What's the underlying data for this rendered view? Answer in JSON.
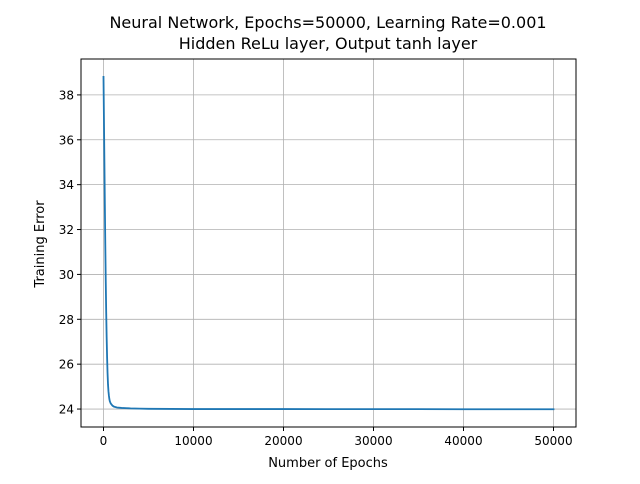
{
  "chart_data": {
    "type": "line",
    "title": "Neural Network, Epochs=50000, Learning Rate=0.001",
    "subtitle": "Hidden ReLu layer, Output tanh layer",
    "xlabel": "Number of Epochs",
    "ylabel": "Training Error",
    "xlim": [
      -2500,
      52500
    ],
    "ylim": [
      23.2,
      39.6
    ],
    "xticks": [
      0,
      10000,
      20000,
      30000,
      40000,
      50000
    ],
    "xtick_labels": [
      "0",
      "10000",
      "20000",
      "30000",
      "40000",
      "50000"
    ],
    "yticks": [
      24,
      26,
      28,
      30,
      32,
      34,
      36,
      38
    ],
    "ytick_labels": [
      "24",
      "26",
      "28",
      "30",
      "32",
      "34",
      "36",
      "38"
    ],
    "grid": true,
    "series_color": "#1f77b4",
    "series": [
      {
        "x": [
          0,
          50,
          100,
          150,
          200,
          250,
          300,
          350,
          400,
          450,
          500,
          550,
          600,
          650,
          700,
          750,
          800,
          900,
          1000,
          1200,
          1500,
          2000,
          3000,
          4000,
          5000,
          7500,
          10000,
          15000,
          20000,
          25000,
          30000,
          35000,
          40000,
          45000,
          50000
        ],
        "y": [
          38.8,
          36.9,
          35.0,
          33.1,
          31.3,
          29.7,
          28.3,
          27.2,
          26.3,
          25.6,
          25.1,
          24.8,
          24.6,
          24.45,
          24.35,
          24.3,
          24.25,
          24.2,
          24.15,
          24.1,
          24.07,
          24.05,
          24.03,
          24.02,
          24.01,
          24.005,
          24.0,
          24.0,
          24.0,
          23.995,
          23.995,
          23.995,
          23.99,
          23.99,
          23.99
        ]
      }
    ]
  }
}
